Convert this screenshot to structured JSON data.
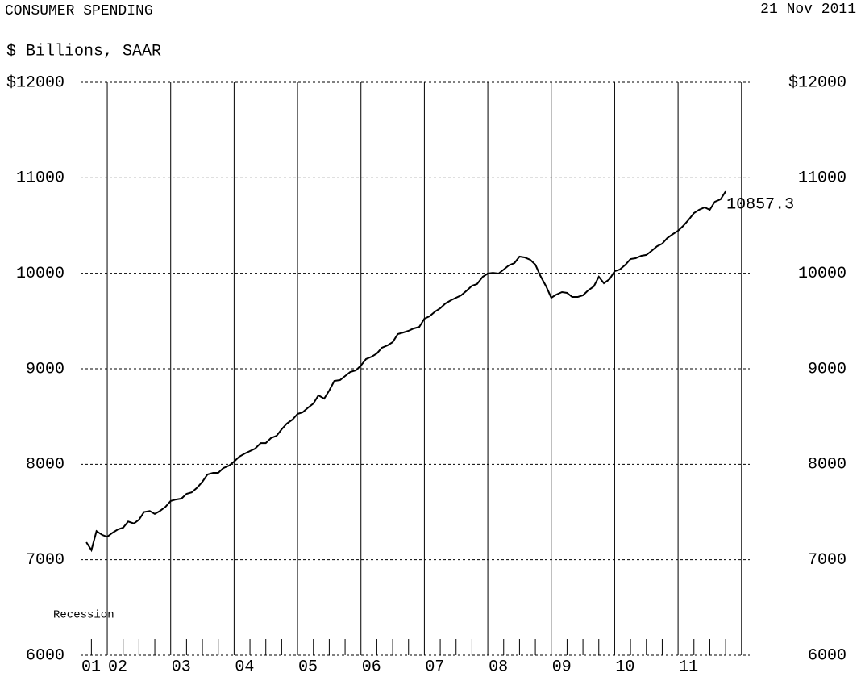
{
  "chart_data": {
    "type": "line",
    "title": "CONSUMER SPENDING",
    "date": "21 Nov 2011",
    "subtitle": "$ Billions, SAAR",
    "annotation": "Recession",
    "xlim": [
      2001.58,
      2012.13
    ],
    "ylim": [
      6000,
      12000
    ],
    "xticks": [
      {
        "value": 2001,
        "label": "01"
      },
      {
        "value": 2002,
        "label": "02"
      },
      {
        "value": 2003,
        "label": "03"
      },
      {
        "value": 2004,
        "label": "04"
      },
      {
        "value": 2005,
        "label": "05"
      },
      {
        "value": 2006,
        "label": "06"
      },
      {
        "value": 2007,
        "label": "07"
      },
      {
        "value": 2008,
        "label": "08"
      },
      {
        "value": 2009,
        "label": "09"
      },
      {
        "value": 2010,
        "label": "10"
      },
      {
        "value": 2011,
        "label": "11"
      }
    ],
    "yticks": [
      6000,
      7000,
      8000,
      9000,
      10000,
      11000,
      {
        "value": 12000,
        "label": "$12000"
      }
    ],
    "grid": true,
    "x": [
      2001.67,
      2001.75,
      2001.83,
      2001.92,
      2002.0,
      2002.08,
      2002.17,
      2002.25,
      2002.33,
      2002.42,
      2002.5,
      2002.58,
      2002.67,
      2002.75,
      2002.83,
      2002.92,
      2003.0,
      2003.08,
      2003.17,
      2003.25,
      2003.33,
      2003.42,
      2003.5,
      2003.58,
      2003.67,
      2003.75,
      2003.83,
      2003.92,
      2004.0,
      2004.08,
      2004.17,
      2004.25,
      2004.33,
      2004.42,
      2004.5,
      2004.58,
      2004.67,
      2004.75,
      2004.83,
      2004.92,
      2005.0,
      2005.08,
      2005.17,
      2005.25,
      2005.33,
      2005.42,
      2005.5,
      2005.58,
      2005.67,
      2005.75,
      2005.83,
      2005.92,
      2006.0,
      2006.08,
      2006.17,
      2006.25,
      2006.33,
      2006.42,
      2006.5,
      2006.58,
      2006.67,
      2006.75,
      2006.83,
      2006.92,
      2007.0,
      2007.08,
      2007.17,
      2007.25,
      2007.33,
      2007.42,
      2007.5,
      2007.58,
      2007.67,
      2007.75,
      2007.83,
      2007.92,
      2008.0,
      2008.08,
      2008.17,
      2008.25,
      2008.33,
      2008.42,
      2008.5,
      2008.58,
      2008.67,
      2008.75,
      2008.83,
      2008.92,
      2009.0,
      2009.08,
      2009.17,
      2009.25,
      2009.33,
      2009.42,
      2009.5,
      2009.58,
      2009.67,
      2009.75,
      2009.83,
      2009.92,
      2010.0,
      2010.08,
      2010.17,
      2010.25,
      2010.33,
      2010.42,
      2010.5,
      2010.58,
      2010.67,
      2010.75,
      2010.83,
      2010.92,
      2011.0,
      2011.08,
      2011.17,
      2011.25,
      2011.33,
      2011.42,
      2011.5,
      2011.58,
      2011.67,
      2011.75
    ],
    "series": [
      {
        "name": "Consumer Spending",
        "color": "#000000",
        "values": [
          7183,
          7100,
          7300,
          7260,
          7240,
          7280,
          7318,
          7335,
          7400,
          7380,
          7420,
          7500,
          7510,
          7480,
          7510,
          7555,
          7615,
          7630,
          7640,
          7690,
          7705,
          7757,
          7817,
          7893,
          7910,
          7910,
          7960,
          7986,
          8028,
          8079,
          8113,
          8138,
          8163,
          8222,
          8222,
          8273,
          8298,
          8366,
          8425,
          8468,
          8527,
          8544,
          8594,
          8636,
          8721,
          8687,
          8772,
          8873,
          8882,
          8924,
          8966,
          8983,
          9034,
          9101,
          9127,
          9160,
          9220,
          9245,
          9279,
          9363,
          9380,
          9397,
          9422,
          9439,
          9524,
          9549,
          9600,
          9634,
          9684,
          9718,
          9744,
          9769,
          9820,
          9870,
          9887,
          9963,
          9997,
          10005,
          9997,
          10039,
          10082,
          10107,
          10175,
          10166,
          10141,
          10090,
          9972,
          9862,
          9744,
          9777,
          9803,
          9794,
          9752,
          9752,
          9769,
          9820,
          9862,
          9963,
          9896,
          9938,
          10022,
          10039,
          10090,
          10149,
          10158,
          10183,
          10192,
          10234,
          10284,
          10310,
          10369,
          10411,
          10445,
          10496,
          10563,
          10631,
          10665,
          10690,
          10665,
          10749,
          10775,
          10857.3
        ]
      }
    ]
  }
}
